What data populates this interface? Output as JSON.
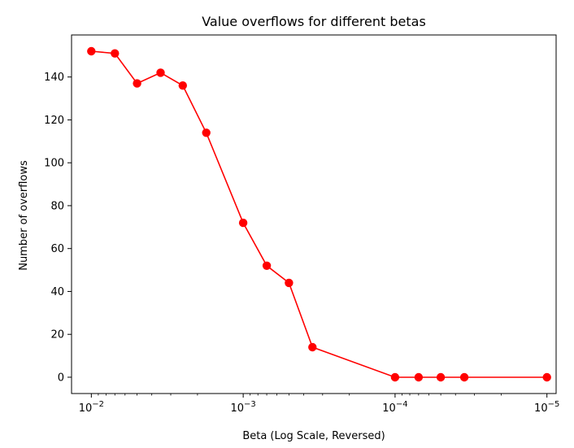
{
  "chart_data": {
    "type": "line",
    "title": "Value overflows for different betas",
    "xlabel": "Beta (Log Scale, Reversed)",
    "ylabel": "Number of overflows",
    "x_scale": "log",
    "x_reversed": true,
    "xlim": [
      0.0135,
      8.7e-06
    ],
    "ylim": [
      -7.6,
      159.6
    ],
    "grid": false,
    "legend": "none",
    "series": [
      {
        "color": "#ff0000",
        "marker": "circle",
        "x": [
          0.01,
          0.007,
          0.005,
          0.0035,
          0.0025,
          0.00175,
          0.001,
          0.0007,
          0.0005,
          0.00035,
          0.0001,
          7e-05,
          5e-05,
          3.5e-05,
          1e-05
        ],
        "y": [
          152,
          151,
          137,
          142,
          136,
          114,
          72,
          52,
          44,
          14,
          0,
          0,
          0,
          0,
          0
        ]
      }
    ],
    "x_ticks": [
      {
        "value": 0.01,
        "base": "10",
        "exp": "−2"
      },
      {
        "value": 0.001,
        "base": "10",
        "exp": "−3"
      },
      {
        "value": 0.0001,
        "base": "10",
        "exp": "−4"
      },
      {
        "value": 1e-05,
        "base": "10",
        "exp": "−5"
      }
    ],
    "y_ticks": [
      0,
      20,
      40,
      60,
      80,
      100,
      120,
      140
    ]
  }
}
